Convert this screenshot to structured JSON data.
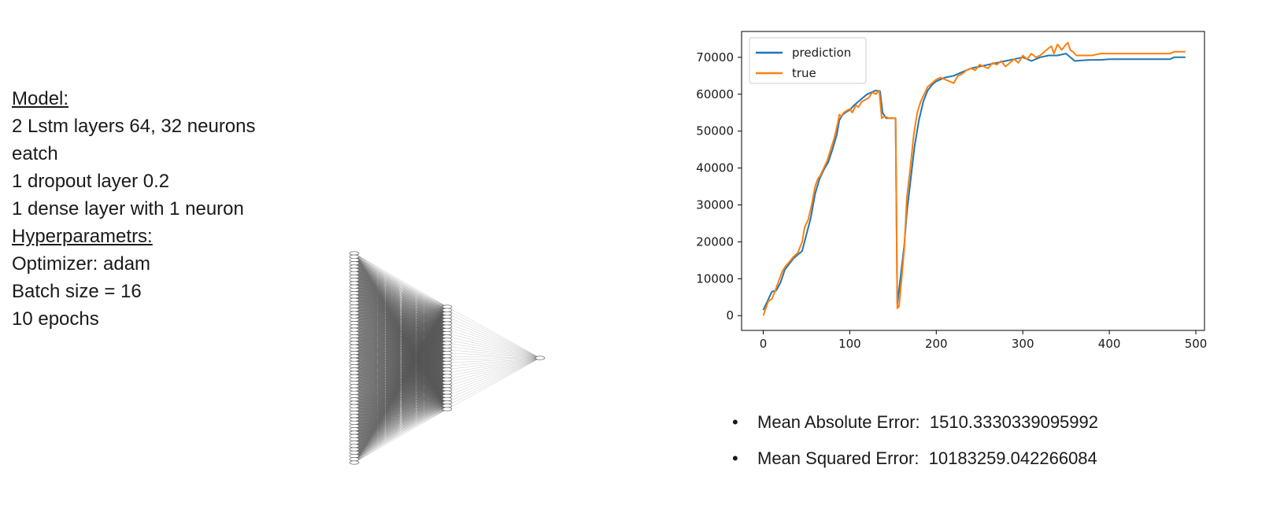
{
  "model_info": {
    "model_heading": "Model:",
    "model_lines": [
      "2 Lstm layers 64, 32 neurons",
      "eatch",
      "1 dropout layer 0.2",
      "1 dense layer with 1 neuron"
    ],
    "hyper_heading": "Hyperparametrs:",
    "hyper_lines": [
      "Optimizer: adam",
      "Batch size = 16",
      "10 epochs"
    ]
  },
  "network": {
    "layer_node_counts": [
      64,
      32,
      1
    ],
    "node_color": "#ffffff",
    "edge_color": "#555555"
  },
  "chart_data": {
    "type": "line",
    "title": "",
    "xlabel": "",
    "ylabel": "",
    "xlim": [
      -25,
      510
    ],
    "ylim": [
      -4000,
      77000
    ],
    "x_ticks": [
      0,
      100,
      200,
      300,
      400,
      500
    ],
    "y_ticks": [
      0,
      10000,
      20000,
      30000,
      40000,
      50000,
      60000,
      70000
    ],
    "grid": false,
    "legend_position": "top-left",
    "series": [
      {
        "name": "prediction",
        "color": "#1f77b4",
        "x": [
          0,
          5,
          10,
          15,
          20,
          25,
          30,
          35,
          40,
          45,
          50,
          55,
          60,
          65,
          70,
          75,
          80,
          85,
          88,
          92,
          96,
          100,
          105,
          110,
          115,
          120,
          125,
          130,
          135,
          138,
          142,
          145,
          150,
          153,
          155,
          157,
          160,
          163,
          166,
          170,
          175,
          180,
          185,
          190,
          195,
          200,
          210,
          220,
          230,
          240,
          250,
          260,
          270,
          280,
          290,
          300,
          310,
          320,
          330,
          340,
          350,
          355,
          360,
          370,
          380,
          390,
          400,
          420,
          440,
          460,
          470,
          475,
          480,
          488
        ],
        "y": [
          1500,
          4000,
          6500,
          6800,
          9000,
          12500,
          14000,
          15500,
          16500,
          17500,
          22000,
          26500,
          33000,
          37000,
          39500,
          41500,
          45000,
          49000,
          53000,
          54500,
          55200,
          55700,
          57000,
          58000,
          59000,
          60000,
          60500,
          61000,
          60800,
          55000,
          53500,
          53500,
          53500,
          53500,
          3000,
          7000,
          13000,
          19000,
          28000,
          36000,
          46000,
          53000,
          58000,
          61000,
          62500,
          63500,
          64500,
          65000,
          66000,
          67000,
          67500,
          68000,
          68500,
          69000,
          69500,
          70000,
          69000,
          70000,
          70500,
          70500,
          71000,
          70000,
          69000,
          69200,
          69300,
          69300,
          69500,
          69500,
          69500,
          69500,
          69500,
          70000,
          70000,
          70000
        ]
      },
      {
        "name": "true",
        "color": "#ff7f0e",
        "x": [
          0,
          3,
          6,
          10,
          15,
          18,
          22,
          26,
          30,
          35,
          40,
          45,
          48,
          52,
          56,
          60,
          63,
          66,
          70,
          74,
          78,
          82,
          86,
          88,
          90,
          93,
          96,
          100,
          103,
          107,
          110,
          114,
          118,
          122,
          126,
          130,
          134,
          137,
          140,
          145,
          150,
          153,
          155,
          157,
          160,
          163,
          166,
          170,
          174,
          178,
          182,
          186,
          190,
          195,
          200,
          205,
          210,
          215,
          220,
          225,
          230,
          235,
          240,
          245,
          250,
          255,
          260,
          265,
          270,
          275,
          280,
          285,
          290,
          295,
          300,
          305,
          310,
          315,
          320,
          325,
          330,
          333,
          336,
          340,
          345,
          350,
          352,
          355,
          358,
          362,
          370,
          380,
          390,
          400,
          420,
          440,
          460,
          470,
          475,
          480,
          488
        ],
        "y": [
          0,
          2000,
          4000,
          4500,
          7500,
          9500,
          12000,
          13500,
          14500,
          16000,
          17000,
          20000,
          24000,
          26000,
          30000,
          35000,
          37000,
          38000,
          40000,
          42000,
          45000,
          48000,
          52000,
          54500,
          54000,
          55000,
          55500,
          56000,
          55000,
          57000,
          56500,
          58000,
          58500,
          59000,
          60500,
          60000,
          61000,
          53500,
          54000,
          53500,
          53500,
          53500,
          2000,
          2500,
          10000,
          18000,
          32000,
          40000,
          49000,
          55000,
          58000,
          60000,
          62000,
          63000,
          64000,
          64500,
          64000,
          63500,
          63000,
          65000,
          65500,
          66500,
          67000,
          66500,
          68000,
          67500,
          67000,
          68500,
          68000,
          69000,
          67500,
          68500,
          69500,
          68500,
          70500,
          69500,
          71000,
          70000,
          70500,
          71500,
          72500,
          73000,
          71000,
          73500,
          72000,
          73500,
          74000,
          72000,
          71500,
          70500,
          70500,
          70500,
          71000,
          71000,
          71000,
          71000,
          71000,
          71000,
          71500,
          71500,
          71500
        ]
      }
    ]
  },
  "metrics": {
    "mae": "Mean Absolute Error:  1510.3330339095992",
    "mse": "Mean Squared Error:  10183259.042266084"
  }
}
